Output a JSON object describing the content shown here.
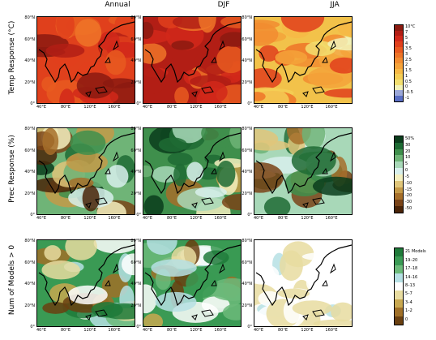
{
  "columns": [
    "Annual",
    "DJF",
    "JJA"
  ],
  "rows": [
    {
      "label": "Temp  Response  (°C)",
      "colorbar": {
        "labels": [
          "10°C",
          "7",
          "5",
          "4",
          "3.5",
          "3",
          "2.5",
          "2",
          "1.5",
          "1",
          "0.5",
          "0",
          "-0.5",
          "-1"
        ],
        "colors": [
          "#8b1a10",
          "#b21e15",
          "#d1281a",
          "#e0401c",
          "#e85a20",
          "#ee7428",
          "#f28c30",
          "#f5a33a",
          "#f7b945",
          "#f5ce55",
          "#f2df70",
          "#f2f2b8",
          "#9ba7d8",
          "#5a6fc4"
        ]
      },
      "panel_base": [
        "#e0401c",
        "#b21e15",
        "#f2c24a"
      ]
    },
    {
      "label": "Prec  Response  (%)",
      "colorbar": {
        "labels": [
          "50%",
          "30",
          "20",
          "10",
          "5",
          "0",
          "-5",
          "-10",
          "-15",
          "-20",
          "-30",
          "-50"
        ],
        "colors": [
          "#0b3d1c",
          "#1e6b34",
          "#3f8f4c",
          "#6fb477",
          "#a8d8b8",
          "#d8f0ec",
          "#f4f0c0",
          "#e0c67a",
          "#c49a48",
          "#a66f2a",
          "#7a4418",
          "#4a2408"
        ]
      },
      "panel_base": [
        "#6fb477",
        "#3f8f4c",
        "#a8d8b8"
      ]
    },
    {
      "label": "Num  of  Models  >  0",
      "colorbar": {
        "labels": [
          "21 Models",
          "19–20",
          "17–18",
          "14–16",
          "8–13",
          "5–7",
          "3–4",
          "1–2",
          "0"
        ],
        "colors": [
          "#1f7a3a",
          "#3a9a54",
          "#6cba7a",
          "#b6e0e4",
          "#ffffff",
          "#e8dca0",
          "#c8a850",
          "#a07028",
          "#6a4010"
        ]
      },
      "panel_base": [
        "#3a9a54",
        "#3a9a54",
        "#ffffff"
      ]
    }
  ],
  "lat_ticks": [
    "80°N",
    "60°N",
    "40°N",
    "20°N",
    "0°"
  ],
  "lon_ticks": [
    "40°E",
    "80°E",
    "120°E",
    "160°E"
  ]
}
